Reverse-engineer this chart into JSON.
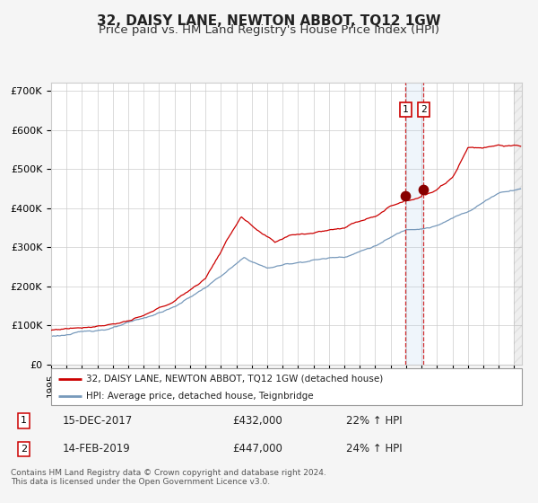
{
  "title": "32, DAISY LANE, NEWTON ABBOT, TQ12 1GW",
  "subtitle": "Price paid vs. HM Land Registry's House Price Index (HPI)",
  "red_line_color": "#cc0000",
  "blue_line_color": "#7799bb",
  "background_color": "#f5f5f5",
  "plot_bg_color": "#ffffff",
  "grid_color": "#cccccc",
  "xlim_start": 1995.0,
  "xlim_end": 2025.5,
  "ylim": [
    0,
    720000
  ],
  "yticks": [
    0,
    100000,
    200000,
    300000,
    400000,
    500000,
    600000,
    700000
  ],
  "ytick_labels": [
    "£0",
    "£100K",
    "£200K",
    "£300K",
    "£400K",
    "£500K",
    "£600K",
    "£700K"
  ],
  "purchase1_date_x": 2017.958,
  "purchase1_price": 432000,
  "purchase2_date_x": 2019.12,
  "purchase2_price": 447000,
  "label1_date": "15-DEC-2017",
  "label1_price": "£432,000",
  "label1_hpi": "22% ↑ HPI",
  "label2_date": "14-FEB-2019",
  "label2_price": "£447,000",
  "label2_hpi": "24% ↑ HPI",
  "legend_line1": "32, DAISY LANE, NEWTON ABBOT, TQ12 1GW (detached house)",
  "legend_line2": "HPI: Average price, detached house, Teignbridge",
  "footer": "Contains HM Land Registry data © Crown copyright and database right 2024.\nThis data is licensed under the Open Government Licence v3.0.",
  "title_fontsize": 11,
  "subtitle_fontsize": 9.5,
  "tick_fontsize": 8
}
